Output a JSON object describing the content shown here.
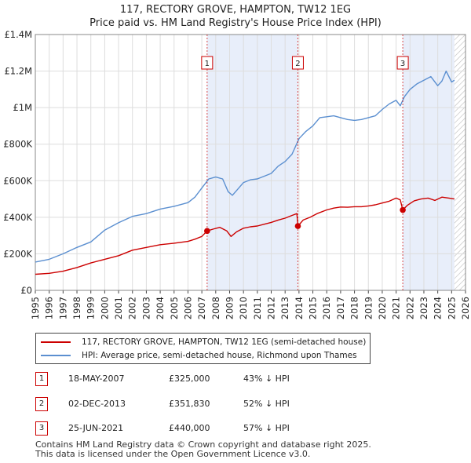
{
  "header": {
    "title": "117, RECTORY GROVE, HAMPTON, TW12 1EG",
    "subtitle": "Price paid vs. HM Land Registry's House Price Index (HPI)"
  },
  "colors": {
    "property": "#cc0000",
    "hpi": "#5b8fd0",
    "highlight": "#e8eefa",
    "grid": "#dddddd"
  },
  "chart_data": {
    "type": "line",
    "title": "117, RECTORY GROVE, HAMPTON, TW12 1EG",
    "subtitle": "Price paid vs. HM Land Registry's House Price Index (HPI)",
    "xlim": [
      1995,
      2026
    ],
    "ylim": [
      0,
      1400000
    ],
    "x_ticks": [
      1995,
      1996,
      1997,
      1998,
      1999,
      2000,
      2001,
      2002,
      2003,
      2004,
      2005,
      2006,
      2007,
      2008,
      2009,
      2010,
      2011,
      2012,
      2013,
      2014,
      2015,
      2016,
      2017,
      2018,
      2019,
      2020,
      2021,
      2022,
      2023,
      2024,
      2025,
      2026
    ],
    "y_ticks": [
      {
        "value": 0,
        "label": "£0"
      },
      {
        "value": 200000,
        "label": "£200K"
      },
      {
        "value": 400000,
        "label": "£400K"
      },
      {
        "value": 600000,
        "label": "£600K"
      },
      {
        "value": 800000,
        "label": "£800K"
      },
      {
        "value": 1000000,
        "label": "£1M"
      },
      {
        "value": 1200000,
        "label": "£1.2M"
      },
      {
        "value": 1400000,
        "label": "£1.4M"
      }
    ],
    "highlight_ranges": [
      [
        2007.38,
        2013.92
      ],
      [
        2021.48,
        2025.2
      ]
    ],
    "hatch_from": 2025.2,
    "series": [
      {
        "name": "117, RECTORY GROVE, HAMPTON, TW12 1EG (semi-detached house)",
        "color": "#cc0000",
        "x": [
          1995,
          1996,
          1997,
          1998,
          1999,
          2000,
          2001,
          2002,
          2003,
          2004,
          2005,
          2006,
          2006.5,
          2007,
          2007.38,
          2007.8,
          2008.3,
          2008.8,
          2009.1,
          2009.5,
          2010,
          2010.5,
          2011,
          2011.5,
          2012,
          2012.5,
          2013,
          2013.5,
          2013.85,
          2013.92,
          2014.3,
          2014.8,
          2015.3,
          2016,
          2016.5,
          2017,
          2017.5,
          2018,
          2018.5,
          2019,
          2019.5,
          2020,
          2020.5,
          2021,
          2021.3,
          2021.48,
          2021.8,
          2022.3,
          2022.8,
          2023.3,
          2023.8,
          2024.3,
          2024.8,
          2025.2
        ],
        "y": [
          88000,
          93000,
          105000,
          125000,
          150000,
          170000,
          190000,
          220000,
          235000,
          250000,
          258000,
          268000,
          280000,
          295000,
          325000,
          335000,
          345000,
          325000,
          295000,
          320000,
          340000,
          348000,
          352000,
          362000,
          372000,
          385000,
          395000,
          410000,
          420000,
          351830,
          385000,
          400000,
          420000,
          440000,
          450000,
          456000,
          455000,
          458000,
          458000,
          462000,
          468000,
          478000,
          488000,
          505000,
          495000,
          440000,
          465000,
          490000,
          500000,
          505000,
          492000,
          510000,
          505000,
          500000
        ]
      },
      {
        "name": "HPI: Average price, semi-detached house, Richmond upon Thames",
        "color": "#5b8fd0",
        "x": [
          1995,
          1996,
          1997,
          1998,
          1999,
          2000,
          2001,
          2002,
          2003,
          2004,
          2005,
          2006,
          2006.5,
          2007,
          2007.5,
          2008,
          2008.5,
          2008.9,
          2009.2,
          2009.6,
          2010,
          2010.5,
          2011,
          2011.5,
          2012,
          2012.5,
          2013,
          2013.5,
          2014,
          2014.5,
          2015,
          2015.5,
          2016,
          2016.5,
          2017,
          2017.5,
          2018,
          2018.5,
          2019,
          2019.5,
          2020,
          2020.5,
          2021,
          2021.3,
          2021.6,
          2022,
          2022.5,
          2023,
          2023.5,
          2024,
          2024.3,
          2024.6,
          2025,
          2025.2
        ],
        "y": [
          155000,
          170000,
          200000,
          235000,
          265000,
          330000,
          370000,
          405000,
          420000,
          445000,
          460000,
          480000,
          510000,
          560000,
          610000,
          620000,
          610000,
          540000,
          520000,
          555000,
          590000,
          605000,
          610000,
          625000,
          640000,
          680000,
          705000,
          745000,
          830000,
          870000,
          900000,
          945000,
          950000,
          955000,
          945000,
          935000,
          930000,
          935000,
          945000,
          955000,
          990000,
          1020000,
          1040000,
          1010000,
          1060000,
          1100000,
          1130000,
          1150000,
          1170000,
          1120000,
          1145000,
          1200000,
          1140000,
          1150000
        ]
      }
    ],
    "sales": [
      {
        "num": "1",
        "x": 2007.38,
        "value": 325000,
        "date": "18-MAY-2007",
        "price": "£325,000",
        "hpi": "43% ↓ HPI"
      },
      {
        "num": "2",
        "x": 2013.92,
        "value": 351830,
        "date": "02-DEC-2013",
        "price": "£351,830",
        "hpi": "52% ↓ HPI"
      },
      {
        "num": "3",
        "x": 2021.48,
        "value": 440000,
        "date": "25-JUN-2021",
        "price": "£440,000",
        "hpi": "57% ↓ HPI"
      }
    ]
  },
  "legend": {
    "property_label": "117, RECTORY GROVE, HAMPTON, TW12 1EG (semi-detached house)",
    "hpi_label": "HPI: Average price, semi-detached house, Richmond upon Thames"
  },
  "footer": {
    "line1": "Contains HM Land Registry data © Crown copyright and database right 2025.",
    "line2": "This data is licensed under the Open Government Licence v3.0."
  }
}
